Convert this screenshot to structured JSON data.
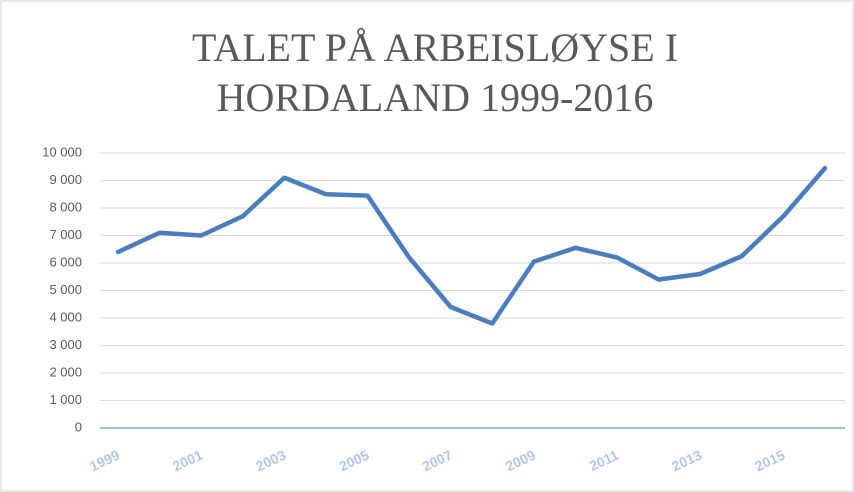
{
  "chart_data": {
    "type": "line",
    "title": [
      "TALET PÅ ARBEISLØYSE I",
      "HORDALAND 1999-2016"
    ],
    "categories": [
      "1999",
      null,
      "2001",
      null,
      "2003",
      null,
      "2005",
      null,
      "2007",
      null,
      "2009",
      null,
      "2011",
      null,
      "2013",
      null,
      "2015",
      null
    ],
    "series": [
      {
        "color": "#4a7dbb",
        "values": [
          6400,
          7100,
          7000,
          7700,
          9100,
          8500,
          8450,
          6200,
          4400,
          3800,
          6050,
          6550,
          6200,
          5400,
          5600,
          6250,
          7700,
          9450
        ]
      }
    ],
    "ylim": [
      0,
      10000
    ],
    "yticks": [
      0,
      {
        "value": 1000,
        "label": "1 000"
      },
      {
        "value": 2000,
        "label": "2 000"
      },
      {
        "value": 3000,
        "label": "3 000"
      },
      {
        "value": 4000,
        "label": "4 000"
      },
      {
        "value": 5000,
        "label": "5 000"
      },
      {
        "value": 6000,
        "label": "6 000"
      },
      {
        "value": 7000,
        "label": "7 000"
      },
      {
        "value": 8000,
        "label": "8 000"
      },
      {
        "value": 9000,
        "label": "9 000"
      },
      {
        "value": 10000,
        "label": "10 000"
      }
    ],
    "grid": true
  }
}
